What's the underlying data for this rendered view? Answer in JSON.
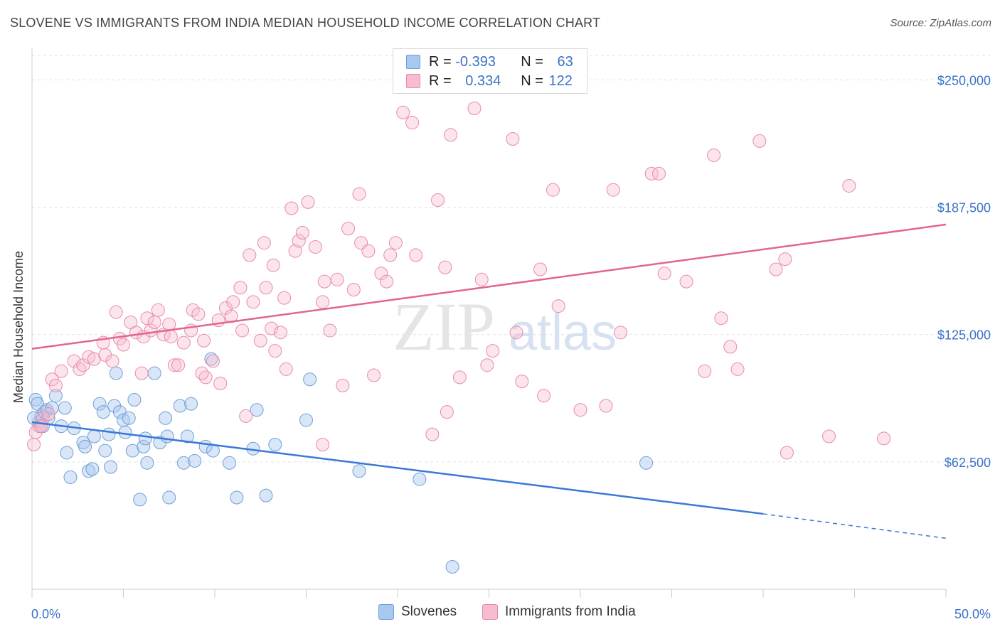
{
  "header": {
    "title": "SLOVENE VS IMMIGRANTS FROM INDIA MEDIAN HOUSEHOLD INCOME CORRELATION CHART",
    "source": "Source: ZipAtlas.com"
  },
  "watermark": {
    "zip": "ZIP",
    "atlas": "atlas"
  },
  "legend": {
    "rows": [
      {
        "r_label": "R =",
        "r_value": "-0.393",
        "n_label": "N =",
        "n_value": "63",
        "color": "#a9c8f0",
        "border": "#6f9fd8"
      },
      {
        "r_label": "R =",
        "r_value": "0.334",
        "n_label": "N =",
        "n_value": "122",
        "color": "#f7bcd0",
        "border": "#e88aaa"
      }
    ],
    "bottom": [
      {
        "label": "Slovenes",
        "color": "#a9c8f0",
        "border": "#6f9fd8"
      },
      {
        "label": "Immigrants from India",
        "color": "#f7bcd0",
        "border": "#e88aaa"
      }
    ]
  },
  "chart_data": {
    "type": "scatter",
    "title": "SLOVENE VS IMMIGRANTS FROM INDIA MEDIAN HOUSEHOLD INCOME CORRELATION CHART",
    "xlabel": "",
    "ylabel": "Median Household Income",
    "xlim": [
      0,
      50
    ],
    "ylim": [
      0,
      262000
    ],
    "x_tick_labels": [
      "0.0%",
      "50.0%"
    ],
    "x_tick_values": [
      0,
      50
    ],
    "y_ticks": [
      {
        "value": 62500,
        "label": "$62,500"
      },
      {
        "value": 125000,
        "label": "$125,000"
      },
      {
        "value": 187500,
        "label": "$187,500"
      },
      {
        "value": 250000,
        "label": "$250,000"
      }
    ],
    "grid": "horizontal dashed",
    "colors": {
      "slovenes": "#3a78d8",
      "india": "#e0668e",
      "blue_fill": "#a9c8f0",
      "pink_fill": "#f7bcd0"
    },
    "series": [
      {
        "name": "Slovenes",
        "trend": {
          "x0": 0,
          "y0": 82000,
          "x1": 40,
          "y1": 37000,
          "dash_x1": 50,
          "dash_y1": 25000
        },
        "points": [
          [
            0.2,
            93000
          ],
          [
            0.3,
            91000
          ],
          [
            0.4,
            82000
          ],
          [
            0.5,
            85000
          ],
          [
            0.6,
            80000
          ],
          [
            0.7,
            87000
          ],
          [
            0.8,
            88000
          ],
          [
            0.9,
            84000
          ],
          [
            1.1,
            89000
          ],
          [
            1.3,
            95000
          ],
          [
            1.6,
            80000
          ],
          [
            1.8,
            89000
          ],
          [
            1.9,
            67000
          ],
          [
            2.1,
            55000
          ],
          [
            2.3,
            79000
          ],
          [
            2.8,
            72000
          ],
          [
            2.9,
            70000
          ],
          [
            3.1,
            58000
          ],
          [
            3.3,
            59000
          ],
          [
            3.4,
            75000
          ],
          [
            3.7,
            91000
          ],
          [
            3.9,
            87000
          ],
          [
            4.0,
            68000
          ],
          [
            4.2,
            76000
          ],
          [
            4.3,
            60000
          ],
          [
            4.5,
            90000
          ],
          [
            4.6,
            106000
          ],
          [
            4.8,
            87000
          ],
          [
            5.0,
            83000
          ],
          [
            5.1,
            77000
          ],
          [
            5.3,
            84000
          ],
          [
            5.5,
            68000
          ],
          [
            5.6,
            93000
          ],
          [
            5.9,
            44000
          ],
          [
            6.1,
            70000
          ],
          [
            6.2,
            74000
          ],
          [
            6.3,
            62000
          ],
          [
            6.7,
            106000
          ],
          [
            7.0,
            72000
          ],
          [
            7.3,
            84000
          ],
          [
            7.4,
            75000
          ],
          [
            7.5,
            45000
          ],
          [
            8.1,
            90000
          ],
          [
            8.3,
            62000
          ],
          [
            8.5,
            75000
          ],
          [
            8.7,
            91000
          ],
          [
            8.9,
            63000
          ],
          [
            9.5,
            70000
          ],
          [
            9.8,
            113000
          ],
          [
            9.9,
            68000
          ],
          [
            10.8,
            62000
          ],
          [
            11.2,
            45000
          ],
          [
            12.1,
            69000
          ],
          [
            12.3,
            88000
          ],
          [
            12.8,
            46000
          ],
          [
            13.3,
            71000
          ],
          [
            15.0,
            83000
          ],
          [
            15.2,
            103000
          ],
          [
            17.9,
            58000
          ],
          [
            21.2,
            54000
          ],
          [
            23.0,
            11000
          ],
          [
            33.6,
            62000
          ],
          [
            0.1,
            84000
          ]
        ]
      },
      {
        "name": "Immigrants from India",
        "trend": {
          "x0": 0,
          "y0": 118000,
          "x1": 50,
          "y1": 179000
        },
        "points": [
          [
            0.1,
            71000
          ],
          [
            0.2,
            77000
          ],
          [
            0.4,
            80000
          ],
          [
            0.6,
            84000
          ],
          [
            0.9,
            86000
          ],
          [
            1.1,
            103000
          ],
          [
            1.3,
            100000
          ],
          [
            1.6,
            107000
          ],
          [
            2.3,
            112000
          ],
          [
            2.6,
            108000
          ],
          [
            2.8,
            110000
          ],
          [
            3.1,
            114000
          ],
          [
            3.4,
            113000
          ],
          [
            3.9,
            121000
          ],
          [
            4.0,
            115000
          ],
          [
            4.4,
            112000
          ],
          [
            4.6,
            136000
          ],
          [
            4.8,
            123000
          ],
          [
            5.0,
            120000
          ],
          [
            5.4,
            131000
          ],
          [
            5.7,
            126000
          ],
          [
            6.0,
            106000
          ],
          [
            6.1,
            124000
          ],
          [
            6.3,
            133000
          ],
          [
            6.5,
            127000
          ],
          [
            6.7,
            131000
          ],
          [
            6.9,
            137000
          ],
          [
            7.2,
            125000
          ],
          [
            7.5,
            130000
          ],
          [
            7.6,
            124000
          ],
          [
            7.8,
            110000
          ],
          [
            8.0,
            110000
          ],
          [
            8.3,
            121000
          ],
          [
            8.7,
            127000
          ],
          [
            8.8,
            137000
          ],
          [
            9.1,
            135000
          ],
          [
            9.4,
            122000
          ],
          [
            9.5,
            104000
          ],
          [
            9.9,
            112000
          ],
          [
            10.2,
            132000
          ],
          [
            10.3,
            101000
          ],
          [
            10.6,
            138000
          ],
          [
            10.9,
            134000
          ],
          [
            11.0,
            141000
          ],
          [
            11.4,
            148000
          ],
          [
            11.5,
            127000
          ],
          [
            11.9,
            164000
          ],
          [
            12.1,
            141000
          ],
          [
            12.5,
            122000
          ],
          [
            12.7,
            170000
          ],
          [
            12.8,
            148000
          ],
          [
            13.1,
            128000
          ],
          [
            13.2,
            159000
          ],
          [
            13.3,
            117000
          ],
          [
            13.6,
            126000
          ],
          [
            13.9,
            108000
          ],
          [
            14.2,
            187000
          ],
          [
            14.4,
            166000
          ],
          [
            14.6,
            171000
          ],
          [
            14.8,
            175000
          ],
          [
            15.1,
            190000
          ],
          [
            15.5,
            168000
          ],
          [
            15.9,
            141000
          ],
          [
            16.0,
            151000
          ],
          [
            16.3,
            127000
          ],
          [
            16.7,
            152000
          ],
          [
            17.0,
            100000
          ],
          [
            17.3,
            177000
          ],
          [
            17.6,
            147000
          ],
          [
            17.9,
            194000
          ],
          [
            18.0,
            170000
          ],
          [
            18.4,
            166000
          ],
          [
            18.7,
            105000
          ],
          [
            19.1,
            155000
          ],
          [
            19.4,
            151000
          ],
          [
            19.6,
            164000
          ],
          [
            19.9,
            170000
          ],
          [
            20.3,
            234000
          ],
          [
            20.8,
            229000
          ],
          [
            21.0,
            164000
          ],
          [
            22.2,
            191000
          ],
          [
            22.6,
            158000
          ],
          [
            22.9,
            223000
          ],
          [
            23.4,
            104000
          ],
          [
            24.2,
            236000
          ],
          [
            24.6,
            152000
          ],
          [
            24.9,
            110000
          ],
          [
            25.2,
            117000
          ],
          [
            26.3,
            221000
          ],
          [
            26.8,
            102000
          ],
          [
            27.8,
            157000
          ],
          [
            28.5,
            196000
          ],
          [
            28.8,
            139000
          ],
          [
            30.0,
            88000
          ],
          [
            31.4,
            90000
          ],
          [
            31.8,
            196000
          ],
          [
            32.2,
            126000
          ],
          [
            33.9,
            204000
          ],
          [
            34.3,
            204000
          ],
          [
            34.6,
            155000
          ],
          [
            35.8,
            151000
          ],
          [
            36.8,
            107000
          ],
          [
            37.3,
            213000
          ],
          [
            37.7,
            133000
          ],
          [
            38.2,
            119000
          ],
          [
            38.6,
            108000
          ],
          [
            39.8,
            220000
          ],
          [
            40.7,
            157000
          ],
          [
            41.2,
            162000
          ],
          [
            41.3,
            67000
          ],
          [
            43.6,
            75000
          ],
          [
            44.7,
            198000
          ],
          [
            46.6,
            74000
          ],
          [
            26.5,
            126000
          ],
          [
            28.0,
            95000
          ],
          [
            13.8,
            143000
          ],
          [
            21.9,
            76000
          ],
          [
            15.9,
            71000
          ],
          [
            22.7,
            87000
          ],
          [
            0.5,
            80000
          ],
          [
            9.3,
            106000
          ],
          [
            11.7,
            85000
          ]
        ]
      }
    ]
  }
}
